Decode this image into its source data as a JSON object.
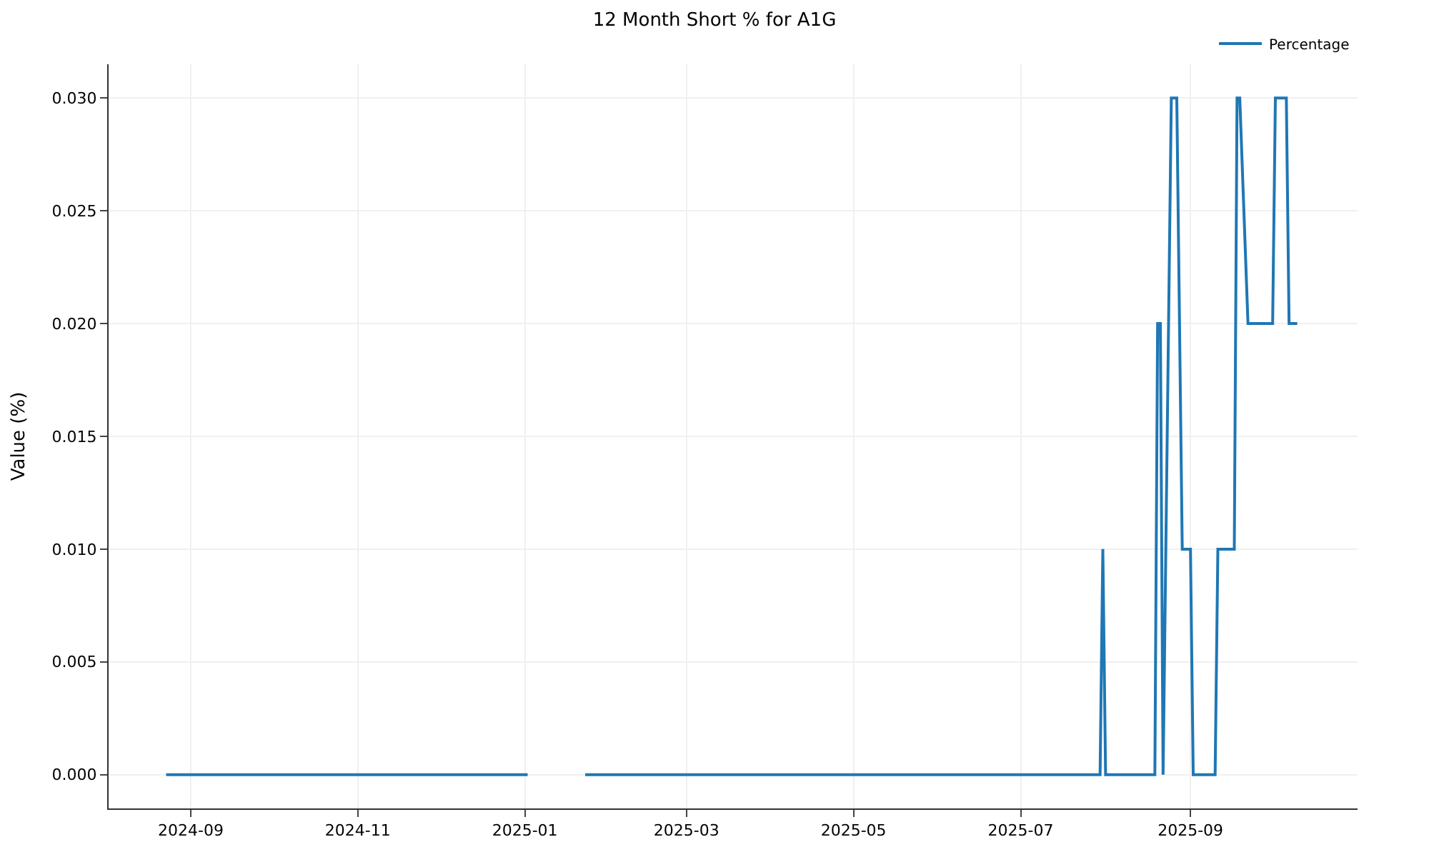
{
  "chart_data": {
    "type": "line",
    "title": "12 Month Short % for A1G",
    "ylabel": "Value (%)",
    "x": [
      "2024-08-23",
      "2025-01-02",
      "2025-01-10",
      "2025-01-23",
      "2025-07-30",
      "2025-07-31",
      "2025-08-01",
      "2025-08-19",
      "2025-08-20",
      "2025-08-21",
      "2025-08-22",
      "2025-08-25",
      "2025-08-27",
      "2025-08-29",
      "2025-09-01",
      "2025-09-02",
      "2025-09-10",
      "2025-09-11",
      "2025-09-17",
      "2025-09-18",
      "2025-09-19",
      "2025-09-22",
      "2025-10-01",
      "2025-10-02",
      "2025-10-06",
      "2025-10-07",
      "2025-10-10"
    ],
    "series": [
      {
        "name": "Percentage",
        "color": "#1f77b4",
        "values": [
          0,
          0,
          null,
          0,
          0,
          0.01,
          0,
          0,
          0.02,
          0.02,
          0,
          0.03,
          0.03,
          0.01,
          0.01,
          0,
          0,
          0.01,
          0.01,
          0.03,
          0.03,
          0.02,
          0.02,
          0.03,
          0.03,
          0.02,
          0.02
        ]
      }
    ],
    "xlim": [
      "2024-08-02",
      "2025-11-01"
    ],
    "xticks": [
      {
        "value": "2024-09-01",
        "label": "2024-09"
      },
      {
        "value": "2024-11-01",
        "label": "2024-11"
      },
      {
        "value": "2025-01-01",
        "label": "2025-01"
      },
      {
        "value": "2025-03-01",
        "label": "2025-03"
      },
      {
        "value": "2025-05-01",
        "label": "2025-05"
      },
      {
        "value": "2025-07-01",
        "label": "2025-07"
      },
      {
        "value": "2025-09-01",
        "label": "2025-09"
      }
    ],
    "ylim": [
      -0.0015,
      0.0315
    ],
    "yticks": [
      {
        "value": 0,
        "label": "0.000"
      },
      {
        "value": 0.005,
        "label": "0.005"
      },
      {
        "value": 0.01,
        "label": "0.010"
      },
      {
        "value": 0.015,
        "label": "0.015"
      },
      {
        "value": 0.02,
        "label": "0.020"
      },
      {
        "value": 0.025,
        "label": "0.025"
      },
      {
        "value": 0.03,
        "label": "0.030"
      }
    ],
    "grid": true,
    "legend": "top right",
    "line_style": "solid",
    "marker": "none"
  }
}
